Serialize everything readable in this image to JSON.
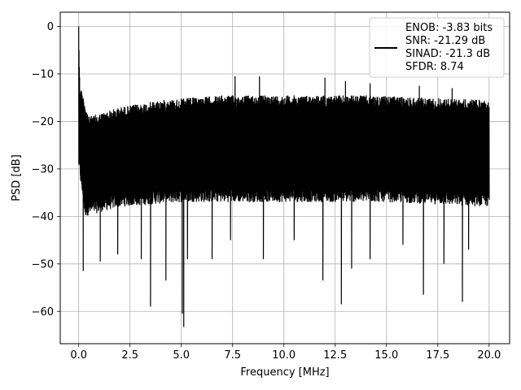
{
  "chart_data": {
    "type": "line",
    "title": "",
    "xlabel": "Frequency [MHz]",
    "ylabel": "PSD [dB]",
    "xlim": [
      -0.9,
      21.0
    ],
    "ylim": [
      -66.8,
      3.0
    ],
    "xticks": [
      0.0,
      2.5,
      5.0,
      7.5,
      10.0,
      12.5,
      15.0,
      17.5,
      20.0
    ],
    "xtick_labels": [
      "0.0",
      "2.5",
      "5.0",
      "7.5",
      "10.0",
      "12.5",
      "15.0",
      "17.5",
      "20.0"
    ],
    "yticks": [
      0,
      -10,
      -20,
      -30,
      -40,
      -50,
      -60
    ],
    "ytick_labels": [
      "0",
      "−10",
      "−20",
      "−30",
      "−40",
      "−50",
      "−60"
    ],
    "grid": true,
    "legend_position": "top-right",
    "series_color": "#000000",
    "legend_lines": [
      "ENOB: -3.83 bits",
      "SNR: -21.29 dB",
      "SINAD: -21.3 dB",
      "SFDR: 8.74"
    ],
    "x_range": [
      0.0,
      20.0
    ],
    "band_upper_envelope": [
      [
        0.0,
        0.0
      ],
      [
        0.05,
        -12
      ],
      [
        0.5,
        -19
      ],
      [
        2.0,
        -17
      ],
      [
        4.0,
        -15.5
      ],
      [
        7.0,
        -14.5
      ],
      [
        10.0,
        -14.5
      ],
      [
        14.0,
        -14.5
      ],
      [
        20.0,
        -15.5
      ]
    ],
    "band_lower_envelope": [
      [
        0.0,
        -30
      ],
      [
        0.3,
        -40
      ],
      [
        2.0,
        -38
      ],
      [
        5.0,
        -37
      ],
      [
        10.0,
        -37
      ],
      [
        15.0,
        -37
      ],
      [
        20.0,
        -38
      ]
    ],
    "upward_spikes": [
      [
        0.0,
        0.0
      ],
      [
        0.03,
        -10.5
      ],
      [
        7.62,
        -10.5
      ],
      [
        8.81,
        -10.5
      ],
      [
        12.0,
        -10.8
      ],
      [
        13.0,
        -11.5
      ],
      [
        14.2,
        -12.0
      ],
      [
        16.6,
        -12.5
      ],
      [
        18.2,
        -13.0
      ]
    ],
    "downward_spikes": [
      [
        0.22,
        -51.5
      ],
      [
        1.05,
        -49.5
      ],
      [
        1.9,
        -48
      ],
      [
        3.05,
        -49
      ],
      [
        3.5,
        -59
      ],
      [
        4.25,
        -53.5
      ],
      [
        5.05,
        -60.5
      ],
      [
        5.12,
        -63.3
      ],
      [
        5.3,
        -49
      ],
      [
        6.5,
        -49
      ],
      [
        7.4,
        -45
      ],
      [
        9.0,
        -49
      ],
      [
        10.5,
        -45
      ],
      [
        11.9,
        -53.5
      ],
      [
        12.8,
        -58.5
      ],
      [
        13.3,
        -51
      ],
      [
        14.2,
        -49
      ],
      [
        15.8,
        -46
      ],
      [
        16.8,
        -56.5
      ],
      [
        17.8,
        -50
      ],
      [
        18.7,
        -58
      ],
      [
        19.0,
        -47
      ]
    ]
  }
}
